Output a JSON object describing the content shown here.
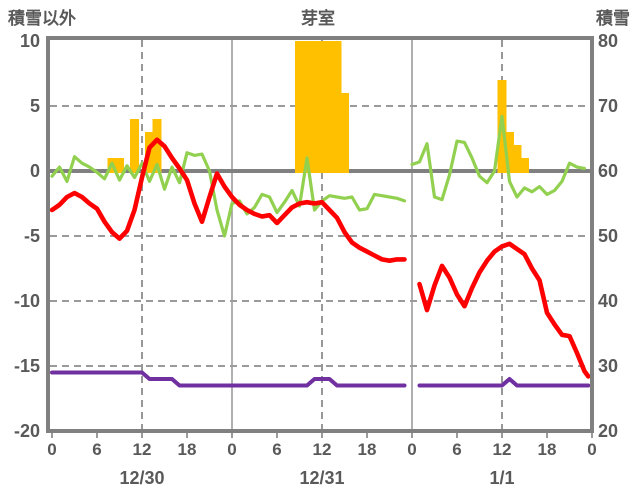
{
  "title": "芽室",
  "left_axis": {
    "label": "積雪以外",
    "ticks": [
      10,
      5,
      0,
      -5,
      -10,
      -15,
      -20
    ],
    "min": -20,
    "max": 10
  },
  "right_axis": {
    "label": "積雪",
    "ticks": [
      80,
      70,
      60,
      50,
      40,
      30,
      20
    ],
    "min": 20,
    "max": 80
  },
  "x_axis": {
    "hour_labels": [
      "0",
      "6",
      "12",
      "18",
      "0",
      "6",
      "12",
      "18",
      "0",
      "6",
      "12",
      "18",
      "0"
    ],
    "hour_step": 6,
    "date_labels": [
      "12/30",
      "12/31",
      "1/1"
    ],
    "hours_total": 72
  },
  "colors": {
    "text": "#595959",
    "border": "#808080",
    "zero_line": "#808080",
    "grid_dashed": "#8C8C8C",
    "grid_solid": "#9C9C9C",
    "bar": "#FFC000",
    "green_line": "#92D050",
    "red_line": "#FF0000",
    "purple_line": "#7030A0"
  },
  "chart_data": {
    "type": "bar",
    "subtype": "composite-weather-chart",
    "x_unit": "hours from 12/30 00:00",
    "left_range": [
      -20,
      10
    ],
    "right_range": [
      20,
      80
    ],
    "gridlines": {
      "horizontal_dashed_at": [
        5,
        -5,
        -10,
        -15
      ],
      "vertical_dashed_at_hours": [
        12,
        36,
        60
      ],
      "vertical_solid_at_hours": [
        24,
        48
      ],
      "zero_line_at": 0
    },
    "series": [
      {
        "name": "snowfall-bars",
        "type": "bar",
        "axis": "left",
        "color": "#FFC000",
        "points": [
          [
            8,
            1
          ],
          [
            9,
            1
          ],
          [
            11,
            4
          ],
          [
            13,
            3
          ],
          [
            14,
            4
          ],
          [
            33,
            10
          ],
          [
            34,
            10
          ],
          [
            35,
            10
          ],
          [
            36,
            10
          ],
          [
            37,
            10
          ],
          [
            38,
            10
          ],
          [
            39,
            6
          ],
          [
            60,
            7
          ],
          [
            61,
            3
          ],
          [
            62,
            2
          ],
          [
            63,
            1
          ]
        ]
      },
      {
        "name": "green-line",
        "type": "line",
        "axis": "left",
        "color": "#92D050",
        "width": 3.2,
        "segments": [
          [
            [
              0,
              -0.4
            ],
            [
              1,
              0.3
            ],
            [
              2,
              -0.8
            ],
            [
              3,
              1.1
            ],
            [
              4,
              0.6
            ],
            [
              5,
              0.3
            ],
            [
              6,
              -0.1
            ],
            [
              7,
              -0.6
            ],
            [
              8,
              0.6
            ],
            [
              9,
              -0.7
            ],
            [
              10,
              0.4
            ],
            [
              11,
              -0.5
            ],
            [
              12,
              0.6
            ],
            [
              13,
              -0.8
            ],
            [
              14,
              0.5
            ],
            [
              15,
              -1.4
            ],
            [
              16,
              0.3
            ],
            [
              17,
              -0.9
            ],
            [
              18,
              1.4
            ],
            [
              19,
              1.2
            ],
            [
              20,
              1.3
            ],
            [
              21,
              0.0
            ],
            [
              22,
              -3.0
            ],
            [
              23,
              -5.0
            ],
            [
              24,
              -2.5
            ],
            [
              25,
              -2.3
            ],
            [
              26,
              -3.3
            ],
            [
              27,
              -2.8
            ],
            [
              28,
              -1.8
            ],
            [
              29,
              -2.0
            ],
            [
              30,
              -3.2
            ],
            [
              31,
              -2.4
            ],
            [
              32,
              -1.5
            ],
            [
              33,
              -2.7
            ],
            [
              34,
              1.0
            ],
            [
              35,
              -3.0
            ],
            [
              36,
              -2.3
            ],
            [
              37,
              -1.9
            ],
            [
              38,
              -2.0
            ],
            [
              39,
              -2.1
            ],
            [
              40,
              -2.0
            ],
            [
              41,
              -3.0
            ],
            [
              42,
              -2.9
            ],
            [
              43,
              -1.8
            ],
            [
              44,
              -1.9
            ],
            [
              45,
              -2.0
            ],
            [
              46,
              -2.1
            ],
            [
              47,
              -2.3
            ]
          ],
          [
            [
              48,
              0.5
            ],
            [
              49,
              0.7
            ],
            [
              50,
              2.1
            ],
            [
              51,
              -2.0
            ],
            [
              52,
              -2.2
            ],
            [
              53,
              -0.3
            ],
            [
              54,
              2.3
            ],
            [
              55,
              2.2
            ],
            [
              56,
              1.0
            ],
            [
              57,
              -0.4
            ],
            [
              58,
              -0.9
            ],
            [
              59,
              0.0
            ],
            [
              60,
              4.2
            ],
            [
              61,
              -0.8
            ],
            [
              62,
              -2.0
            ],
            [
              63,
              -1.3
            ],
            [
              64,
              -1.6
            ],
            [
              65,
              -1.2
            ],
            [
              66,
              -1.8
            ],
            [
              67,
              -1.5
            ],
            [
              68,
              -0.8
            ],
            [
              69,
              0.6
            ],
            [
              70,
              0.3
            ],
            [
              71,
              0.2
            ]
          ]
        ]
      },
      {
        "name": "temperature-red-line",
        "type": "line",
        "axis": "left",
        "color": "#FF0000",
        "width": 4.6,
        "segments": [
          [
            [
              0,
              -3.0
            ],
            [
              1,
              -2.6
            ],
            [
              2,
              -2.0
            ],
            [
              3,
              -1.7
            ],
            [
              4,
              -2.0
            ],
            [
              5,
              -2.5
            ],
            [
              6,
              -2.9
            ],
            [
              7,
              -3.9
            ],
            [
              8,
              -4.7
            ],
            [
              9,
              -5.2
            ],
            [
              10,
              -4.6
            ],
            [
              11,
              -3.0
            ],
            [
              12,
              -0.5
            ],
            [
              13,
              1.8
            ],
            [
              14,
              2.4
            ],
            [
              15,
              1.9
            ],
            [
              16,
              1.0
            ],
            [
              17,
              0.2
            ],
            [
              18,
              -0.7
            ],
            [
              19,
              -2.5
            ],
            [
              20,
              -3.9
            ],
            [
              21,
              -2.0
            ],
            [
              22,
              -0.2
            ],
            [
              23,
              -1.2
            ],
            [
              24,
              -2.0
            ],
            [
              25,
              -2.6
            ],
            [
              26,
              -3.0
            ],
            [
              27,
              -3.3
            ],
            [
              28,
              -3.5
            ],
            [
              29,
              -3.4
            ],
            [
              30,
              -4.0
            ],
            [
              31,
              -3.4
            ],
            [
              32,
              -2.8
            ],
            [
              33,
              -2.5
            ],
            [
              34,
              -2.4
            ],
            [
              35,
              -2.5
            ],
            [
              36,
              -2.4
            ],
            [
              37,
              -3.0
            ],
            [
              38,
              -3.6
            ],
            [
              39,
              -4.7
            ],
            [
              40,
              -5.5
            ],
            [
              41,
              -5.9
            ],
            [
              42,
              -6.2
            ],
            [
              43,
              -6.5
            ],
            [
              44,
              -6.8
            ],
            [
              45,
              -6.9
            ],
            [
              46,
              -6.8
            ],
            [
              47,
              -6.8
            ]
          ],
          [
            [
              49,
              -8.7
            ],
            [
              50,
              -10.7
            ],
            [
              51,
              -8.8
            ],
            [
              52,
              -7.3
            ],
            [
              53,
              -8.2
            ],
            [
              54,
              -9.5
            ],
            [
              55,
              -10.4
            ],
            [
              56,
              -9.0
            ],
            [
              57,
              -7.8
            ],
            [
              58,
              -6.9
            ],
            [
              59,
              -6.2
            ],
            [
              60,
              -5.8
            ],
            [
              61,
              -5.6
            ],
            [
              62,
              -6.0
            ],
            [
              63,
              -6.4
            ],
            [
              64,
              -7.5
            ],
            [
              65,
              -8.4
            ],
            [
              66,
              -10.9
            ],
            [
              67,
              -11.8
            ],
            [
              68,
              -12.6
            ],
            [
              69,
              -12.7
            ],
            [
              70,
              -14.0
            ],
            [
              71,
              -15.4
            ],
            [
              71.5,
              -15.8
            ]
          ]
        ]
      },
      {
        "name": "snow-depth-purple-line",
        "type": "line",
        "axis": "right",
        "color": "#7030A0",
        "width": 4,
        "segments": [
          [
            [
              0,
              29
            ],
            [
              12,
              29
            ],
            [
              13,
              28
            ],
            [
              16,
              28
            ],
            [
              17,
              27
            ],
            [
              34,
              27
            ],
            [
              35,
              28
            ],
            [
              37,
              28
            ],
            [
              38,
              27
            ],
            [
              47,
              27
            ]
          ],
          [
            [
              49,
              27
            ],
            [
              60,
              27
            ],
            [
              61,
              28
            ],
            [
              62,
              27
            ],
            [
              71.5,
              27
            ]
          ]
        ]
      }
    ]
  }
}
